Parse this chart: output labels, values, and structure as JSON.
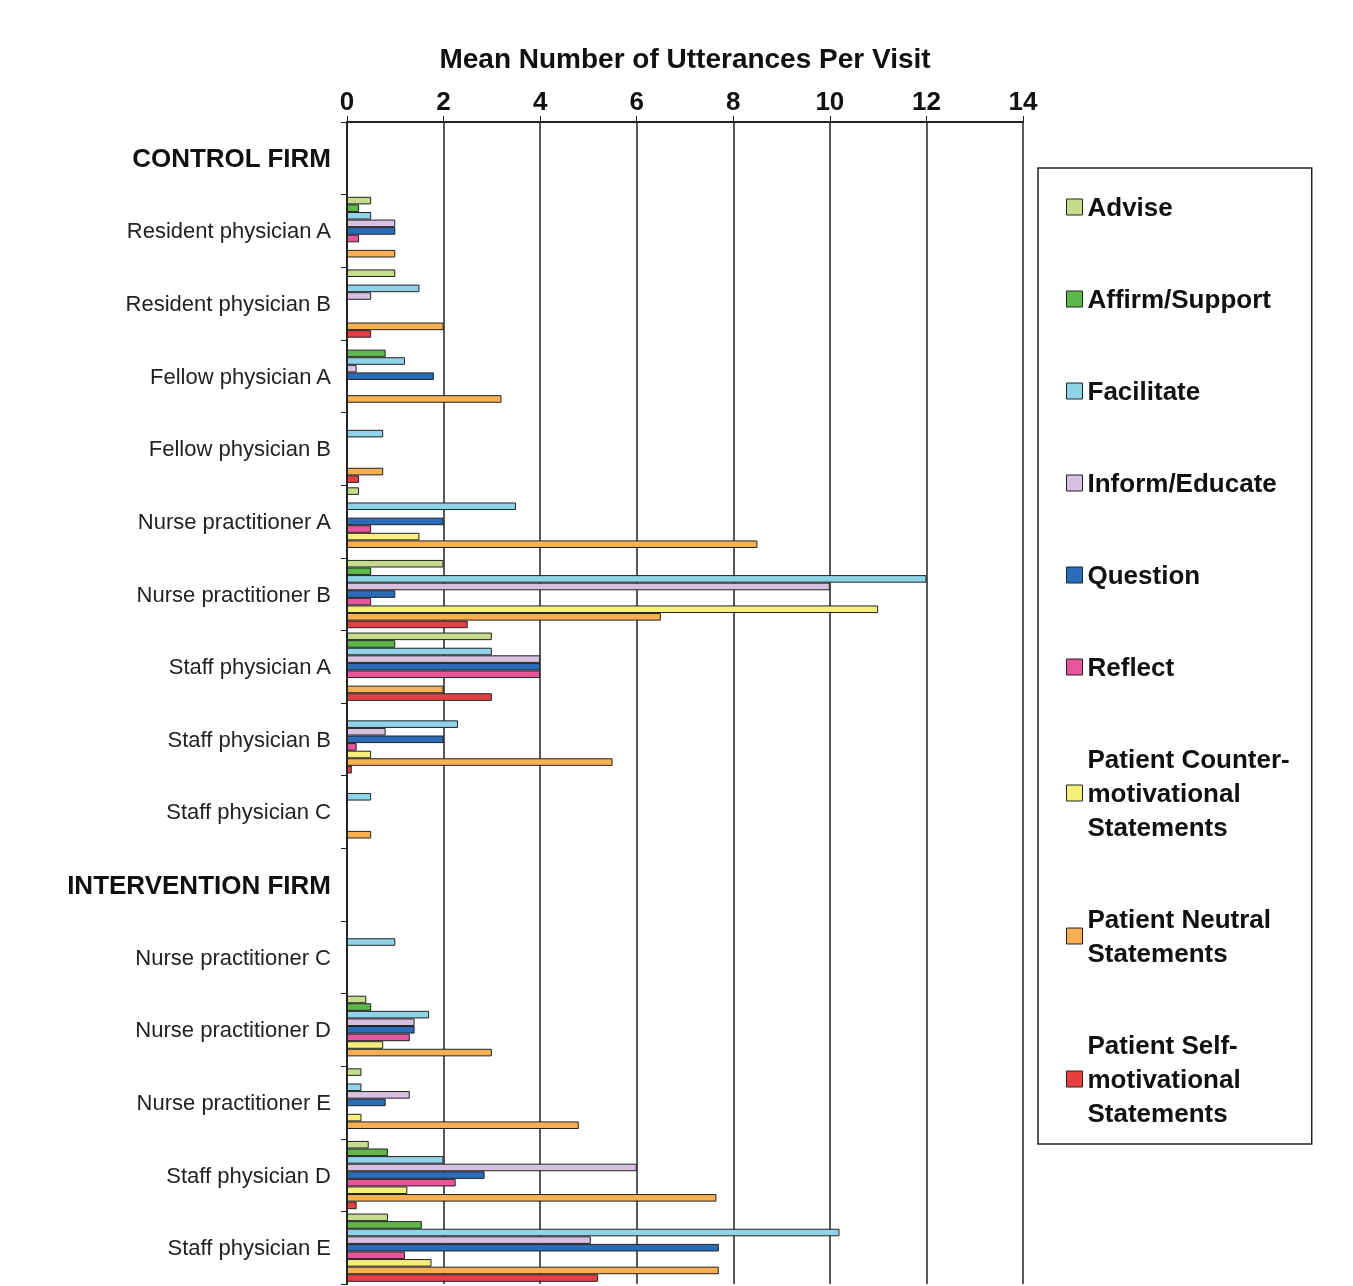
{
  "chart_data": {
    "type": "bar",
    "orientation": "horizontal",
    "xlabel": "Mean Number of Utterances Per Visit",
    "categories": [
      "CONTROL FIRM",
      "Resident physician A",
      "Resident physician B",
      "Fellow physician A",
      "Fellow physician B",
      "Nurse practitioner A",
      "Nurse practitioner B",
      "Staff physician A",
      "Staff physician B",
      "Staff physician C",
      "INTERVENTION FIRM",
      "Nurse practitioner C",
      "Nurse practitioner D",
      "Nurse practitioner E",
      "Staff physician D",
      "Staff physician E"
    ],
    "xlim": [
      0,
      14
    ],
    "xticks": [
      0,
      2,
      4,
      6,
      8,
      10,
      12,
      14
    ],
    "grid": "x",
    "legend": "right",
    "series": [
      {
        "name": "Advise",
        "color": "#c5dc8c",
        "values": [
          null,
          0.5,
          1,
          null,
          null,
          0.25,
          2,
          3,
          null,
          null,
          null,
          null,
          0.4,
          0.3,
          0.45,
          0.85
        ]
      },
      {
        "name": "Affirm/Support",
        "color": "#5cb848",
        "values": [
          null,
          0.25,
          null,
          0.8,
          null,
          null,
          0.5,
          1,
          null,
          null,
          null,
          null,
          0.5,
          null,
          0.85,
          1.55
        ]
      },
      {
        "name": "Facilitate",
        "color": "#8fd3e8",
        "values": [
          null,
          0.5,
          1.5,
          1.2,
          0.75,
          3.5,
          12,
          3,
          2.3,
          0.5,
          null,
          1,
          1.7,
          0.3,
          2,
          10.2
        ]
      },
      {
        "name": "Inform/Educate",
        "color": "#d8c0e0",
        "values": [
          null,
          1,
          0.5,
          0.2,
          null,
          null,
          10,
          4,
          0.8,
          null,
          null,
          null,
          1.4,
          1.3,
          6,
          5.05
        ]
      },
      {
        "name": "Question",
        "color": "#2b6cb8",
        "values": [
          null,
          1,
          null,
          1.8,
          null,
          2,
          1,
          4,
          2,
          null,
          null,
          null,
          1.4,
          0.8,
          2.85,
          7.7
        ]
      },
      {
        "name": "Reflect",
        "color": "#e8559a",
        "values": [
          null,
          0.25,
          null,
          null,
          null,
          0.5,
          0.5,
          4,
          0.2,
          null,
          null,
          null,
          1.3,
          null,
          2.25,
          1.2
        ]
      },
      {
        "name": "Patient Counter-motivational Statements",
        "color": "#f8ef7a",
        "values": [
          null,
          null,
          null,
          null,
          null,
          1.5,
          11,
          null,
          0.5,
          null,
          null,
          null,
          0.75,
          0.3,
          1.25,
          1.75
        ]
      },
      {
        "name": "Patient Neutral Statements",
        "color": "#f8b050",
        "values": [
          null,
          1,
          2,
          3.2,
          0.75,
          8.5,
          6.5,
          2,
          5.5,
          0.5,
          null,
          null,
          3,
          4.8,
          7.65,
          7.7
        ]
      },
      {
        "name": "Patient Self-motivational Statements",
        "color": "#e84040",
        "values": [
          null,
          null,
          0.5,
          null,
          0.25,
          null,
          2.5,
          3,
          0.1,
          null,
          null,
          null,
          null,
          null,
          0.2,
          5.2
        ]
      }
    ]
  }
}
